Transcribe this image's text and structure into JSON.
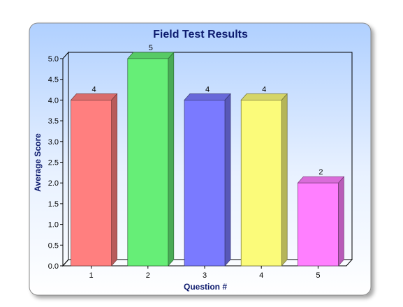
{
  "chart_data": {
    "type": "bar",
    "title": "Field Test Results",
    "xlabel": "Question #",
    "ylabel": "Average Score",
    "categories": [
      "1",
      "2",
      "3",
      "4",
      "5"
    ],
    "values": [
      4,
      5,
      4,
      4,
      2
    ],
    "data_labels": [
      "4",
      "5",
      "4",
      "4",
      "2"
    ],
    "ylim": [
      0,
      5
    ],
    "yticks": [
      "0.0",
      "0.5",
      "1.0",
      "1.5",
      "2.0",
      "2.5",
      "3.0",
      "3.5",
      "4.0",
      "4.5",
      "5.0"
    ],
    "grid": false,
    "legend": "none",
    "colors": [
      "#ff7f7f",
      "#66ee77",
      "#7a7aff",
      "#fbfb7a",
      "#ff7fff"
    ],
    "panel_gradient": [
      "#b0d0ff",
      "#ffffff"
    ]
  }
}
